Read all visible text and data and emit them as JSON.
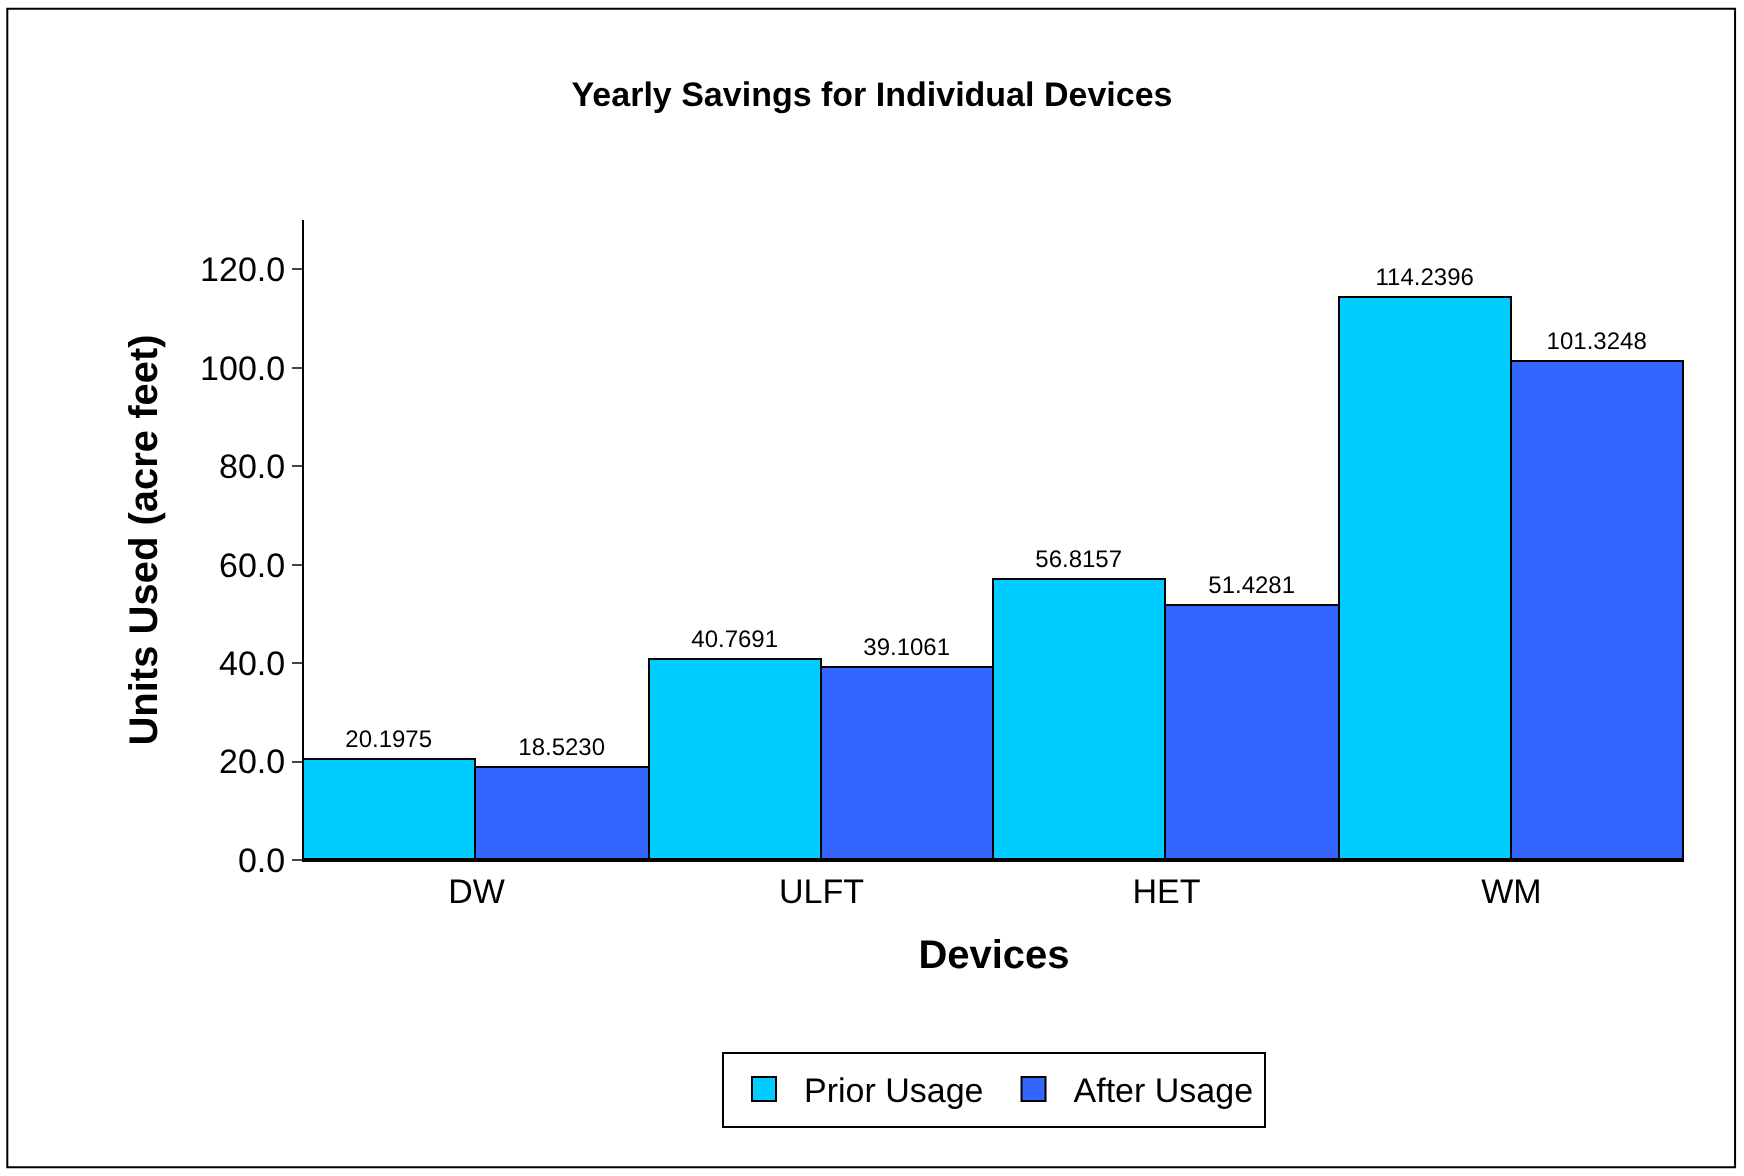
{
  "chart_data": {
    "type": "bar",
    "title": "Yearly Savings for Individual Devices",
    "xlabel": "Devices",
    "ylabel": "Units Used (acre feet)",
    "categories": [
      "DW",
      "ULFT",
      "HET",
      "WM"
    ],
    "series": [
      {
        "name": "Prior Usage",
        "color": "#00ccff",
        "values": [
          20.1975,
          40.7691,
          56.8157,
          114.2396
        ],
        "value_labels": [
          "20.1975",
          "40.7691",
          "56.8157",
          "114.2396"
        ]
      },
      {
        "name": "After Usage",
        "color": "#3366ff",
        "values": [
          18.523,
          39.1061,
          51.4281,
          101.3248
        ],
        "value_labels": [
          "18.5230",
          "39.1061",
          "51.4281",
          "101.3248"
        ]
      }
    ],
    "ylim": [
      0,
      130
    ],
    "yticks": [
      {
        "value": 0,
        "label": "0.0"
      },
      {
        "value": 20,
        "label": "20.0"
      },
      {
        "value": 40,
        "label": "40.0"
      },
      {
        "value": 60,
        "label": "60.0"
      },
      {
        "value": 80,
        "label": "80.0"
      },
      {
        "value": 100,
        "label": "100.0"
      },
      {
        "value": 120,
        "label": "120.0"
      }
    ],
    "legend": "bottom"
  }
}
